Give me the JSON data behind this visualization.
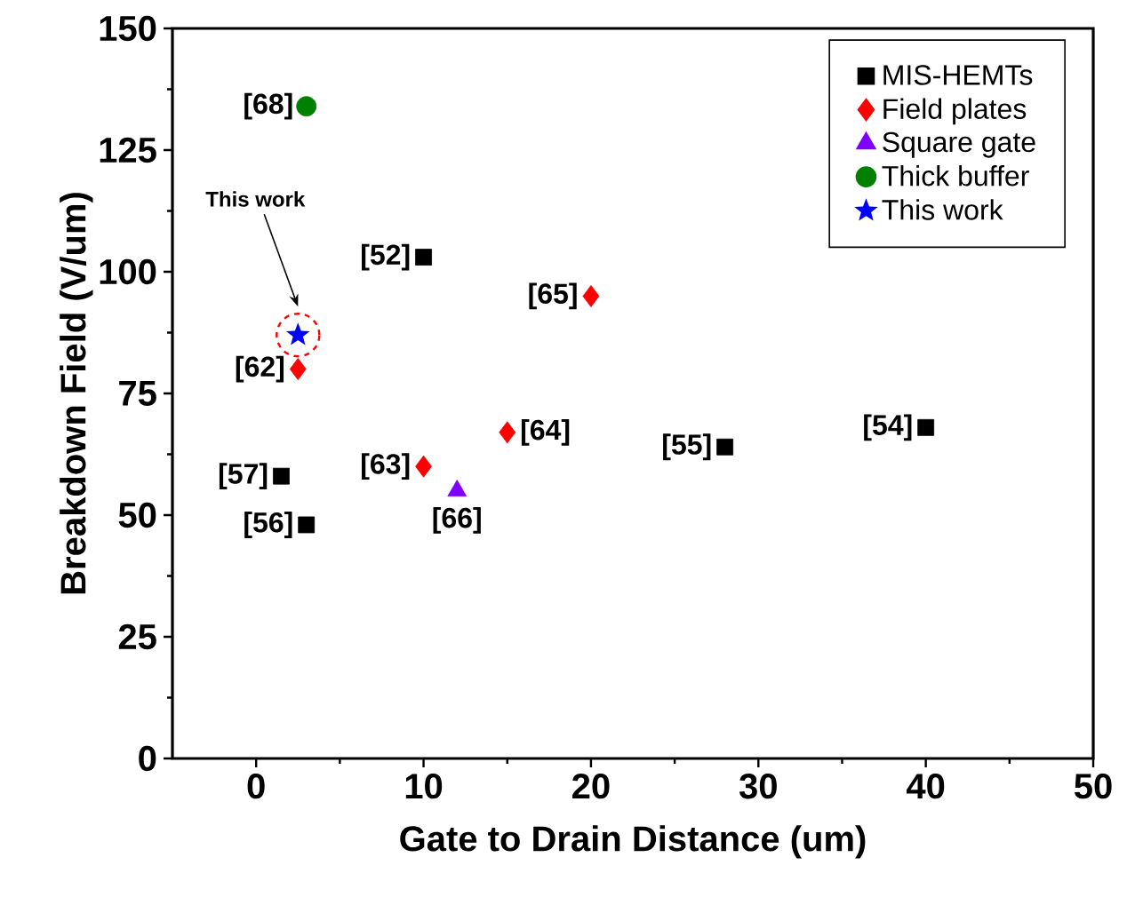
{
  "chart_data": {
    "type": "scatter",
    "xlabel": "Gate to Drain Distance (um)",
    "ylabel": "Breakdown Field (V/um)",
    "xlim": [
      -5,
      50
    ],
    "ylim": [
      0,
      150
    ],
    "xticks": [
      0,
      10,
      20,
      30,
      40,
      50
    ],
    "yticks": [
      0,
      25,
      50,
      75,
      100,
      125,
      150
    ],
    "grid": false,
    "legend": "top right",
    "series": [
      {
        "name": "MIS-HEMTs",
        "color": "#000000",
        "marker": "square",
        "x": [
          10,
          1.5,
          3,
          28,
          40
        ],
        "values": [
          103,
          58,
          48,
          64,
          68
        ]
      },
      {
        "name": "Field plates",
        "color": "#ff0000",
        "marker": "diamond",
        "x": [
          20,
          2.5,
          15,
          10
        ],
        "values": [
          95,
          80,
          67,
          60
        ]
      },
      {
        "name": "Square gate",
        "color": "#8000ff",
        "marker": "triangle",
        "x": [
          12
        ],
        "values": [
          55
        ]
      },
      {
        "name": "Thick buffer",
        "color": "#008000",
        "marker": "circle",
        "x": [
          3
        ],
        "values": [
          134
        ]
      },
      {
        "name": "This work",
        "color": "#0000ff",
        "marker": "star",
        "x": [
          2.5
        ],
        "values": [
          87
        ]
      }
    ],
    "annotations": [
      {
        "text": "[68]",
        "x": 3,
        "y": 134
      },
      {
        "text": "[52]",
        "x": 10,
        "y": 103
      },
      {
        "text": "[65]",
        "x": 20,
        "y": 95
      },
      {
        "text": "[62]",
        "x": 2.5,
        "y": 80
      },
      {
        "text": "[64]",
        "x": 15,
        "y": 67
      },
      {
        "text": "[57]",
        "x": 1.5,
        "y": 58
      },
      {
        "text": "[63]",
        "x": 10,
        "y": 60
      },
      {
        "text": "[56]",
        "x": 3,
        "y": 48
      },
      {
        "text": "[66]",
        "x": 12,
        "y": 55
      },
      {
        "text": "[55]",
        "x": 28,
        "y": 64
      },
      {
        "text": "[54]",
        "x": 40,
        "y": 68
      },
      "This work"
    ]
  }
}
